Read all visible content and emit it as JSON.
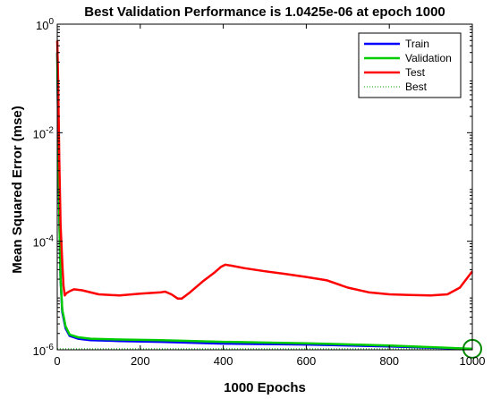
{
  "chart_data": {
    "type": "line",
    "title": "Best Validation Performance is 1.0425e-06 at epoch 1000",
    "xlabel": "1000 Epochs",
    "ylabel": "Mean Squared Error  (mse)",
    "xlim": [
      0,
      1000
    ],
    "ylim": [
      1e-06,
      1
    ],
    "yscale": "log",
    "grid": false,
    "legend_position": "top-right",
    "x_ticks": [
      {
        "value": 0,
        "label": "0"
      },
      {
        "value": 200,
        "label": "200"
      },
      {
        "value": 400,
        "label": "400"
      },
      {
        "value": 600,
        "label": "600"
      },
      {
        "value": 800,
        "label": "800"
      },
      {
        "value": 1000,
        "label": "1000"
      }
    ],
    "y_ticks": [
      {
        "value": 1,
        "base": "10",
        "exp": "0"
      },
      {
        "value": 0.01,
        "base": "10",
        "exp": "-2"
      },
      {
        "value": 0.0001,
        "base": "10",
        "exp": "-4"
      },
      {
        "value": 1e-06,
        "base": "10",
        "exp": "-6"
      }
    ],
    "series": [
      {
        "name": "Train",
        "color": "#0000ff",
        "x": [
          0,
          2,
          5,
          8,
          12,
          20,
          30,
          50,
          80,
          150,
          250,
          400,
          600,
          800,
          1000
        ],
        "y": [
          0.3,
          0.02,
          0.0003,
          2e-05,
          5e-06,
          2.5e-06,
          1.8e-06,
          1.6e-06,
          1.5e-06,
          1.45e-06,
          1.4e-06,
          1.3e-06,
          1.25e-06,
          1.15e-06,
          1.04e-06
        ]
      },
      {
        "name": "Validation",
        "color": "#00cc00",
        "x": [
          0,
          2,
          5,
          8,
          12,
          20,
          30,
          50,
          80,
          150,
          250,
          400,
          600,
          800,
          1000
        ],
        "y": [
          0.3,
          0.02,
          0.0003,
          2e-05,
          5.5e-06,
          2.7e-06,
          1.9e-06,
          1.7e-06,
          1.6e-06,
          1.55e-06,
          1.5e-06,
          1.4e-06,
          1.32e-06,
          1.2e-06,
          1.0425e-06
        ]
      },
      {
        "name": "Test",
        "color": "#ff0000",
        "x": [
          0,
          2,
          5,
          8,
          12,
          15,
          18,
          22,
          30,
          40,
          60,
          100,
          150,
          200,
          250,
          260,
          275,
          290,
          300,
          320,
          350,
          380,
          395,
          405,
          420,
          450,
          500,
          550,
          600,
          650,
          700,
          750,
          800,
          850,
          900,
          940,
          970,
          1000
        ],
        "y": [
          0.5,
          0.1,
          0.003,
          0.0002,
          4e-05,
          1.5e-05,
          1e-05,
          1.1e-05,
          1.2e-05,
          1.3e-05,
          1.25e-05,
          1.05e-05,
          1e-05,
          1.08e-05,
          1.15e-05,
          1.18e-05,
          1.05e-05,
          8.8e-06,
          8.8e-06,
          1.15e-05,
          1.8e-05,
          2.7e-05,
          3.4e-05,
          3.7e-05,
          3.55e-05,
          3.2e-05,
          2.8e-05,
          2.5e-05,
          2.2e-05,
          1.9e-05,
          1.4e-05,
          1.15e-05,
          1.05e-05,
          1.02e-05,
          1e-05,
          1.05e-05,
          1.4e-05,
          2.8e-05
        ]
      },
      {
        "name": "Best",
        "color": "#00aa00",
        "style": "dotted",
        "x_vertical": 1000,
        "y_horizontal": 1.0425e-06
      }
    ],
    "best_marker": {
      "x": 1000,
      "y": 1.0425e-06,
      "color": "#008800"
    }
  }
}
